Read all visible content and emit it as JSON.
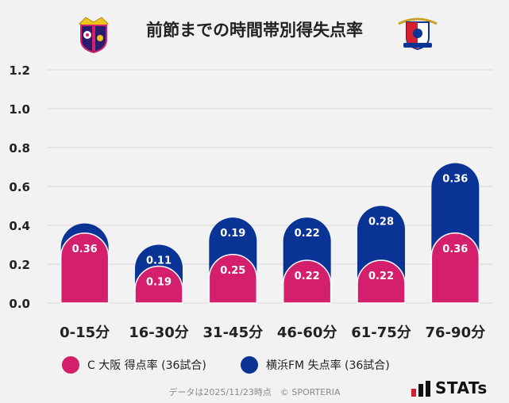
{
  "title": "前節までの時間帯別得失点率",
  "footer": "データは2025/11/23時点　© SPORTERIA",
  "brand": "STATs",
  "colors": {
    "home": "#d41f6c",
    "away": "#0a3396",
    "grid": "#d8d8d8",
    "background": "#f2f2f2"
  },
  "chart_data": {
    "type": "bar",
    "stacked": true,
    "categories": [
      "0-15分",
      "16-30分",
      "31-45分",
      "46-60分",
      "61-75分",
      "76-90分"
    ],
    "series": [
      {
        "name": "C 大阪 得点率 (36試合)",
        "values": [
          0.36,
          0.19,
          0.25,
          0.22,
          0.22,
          0.36
        ]
      },
      {
        "name": "横浜FM 失点率 (36試合)",
        "values": [
          0.05,
          0.11,
          0.19,
          0.22,
          0.28,
          0.36
        ]
      }
    ],
    "value_labels": [
      [
        "0.36",
        "0.19",
        "0.25",
        "0.22",
        "0.22",
        "0.36"
      ],
      [
        "",
        "0.11",
        "0.19",
        "0.22",
        "0.28",
        "0.36"
      ]
    ],
    "yticks": [
      "0.0",
      "0.2",
      "0.4",
      "0.6",
      "0.8",
      "1.0",
      "1.2"
    ],
    "ylim": [
      0,
      1.2
    ],
    "title": "前節までの時間帯別得失点率",
    "xlabel": "",
    "ylabel": "",
    "grid": true,
    "legend_position": "bottom"
  }
}
